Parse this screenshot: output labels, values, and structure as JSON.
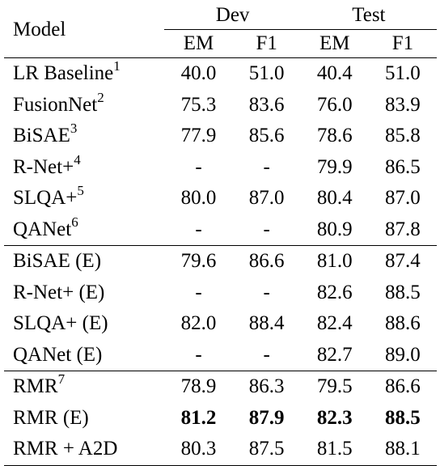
{
  "header": {
    "model_label": "Model",
    "dev_label": "Dev",
    "test_label": "Test",
    "em_label": "EM",
    "f1_label": "F1"
  },
  "rows": [
    {
      "name": "LR Baseline",
      "sup": "1",
      "dev_em": "40.0",
      "dev_f1": "51.0",
      "test_em": "40.4",
      "test_f1": "51.0"
    },
    {
      "name": "FusionNet",
      "sup": "2",
      "dev_em": "75.3",
      "dev_f1": "83.6",
      "test_em": "76.0",
      "test_f1": "83.9"
    },
    {
      "name": "BiSAE",
      "sup": "3",
      "dev_em": "77.9",
      "dev_f1": "85.6",
      "test_em": "78.6",
      "test_f1": "85.8"
    },
    {
      "name": "R-Net+",
      "sup": "4",
      "dev_em": "-",
      "dev_f1": "-",
      "test_em": "79.9",
      "test_f1": "86.5"
    },
    {
      "name": "SLQA+",
      "sup": "5",
      "dev_em": "80.0",
      "dev_f1": "87.0",
      "test_em": "80.4",
      "test_f1": "87.0"
    },
    {
      "name": "QANet",
      "sup": "6",
      "dev_em": "-",
      "dev_f1": "-",
      "test_em": "80.9",
      "test_f1": "87.8"
    },
    {
      "name": "BiSAE (E)",
      "sup": "",
      "dev_em": "79.6",
      "dev_f1": "86.6",
      "test_em": "81.0",
      "test_f1": "87.4"
    },
    {
      "name": "R-Net+ (E)",
      "sup": "",
      "dev_em": "-",
      "dev_f1": "-",
      "test_em": "82.6",
      "test_f1": "88.5"
    },
    {
      "name": "SLQA+ (E)",
      "sup": "",
      "dev_em": "82.0",
      "dev_f1": "88.4",
      "test_em": "82.4",
      "test_f1": "88.6"
    },
    {
      "name": "QANet (E)",
      "sup": "",
      "dev_em": "-",
      "dev_f1": "-",
      "test_em": "82.7",
      "test_f1": "89.0"
    },
    {
      "name": "RMR",
      "sup": "7",
      "dev_em": "78.9",
      "dev_f1": "86.3",
      "test_em": "79.5",
      "test_f1": "86.6"
    },
    {
      "name": "RMR (E)",
      "sup": "",
      "dev_em": "81.2",
      "dev_f1": "87.9",
      "test_em": "82.3",
      "test_f1": "88.5",
      "bold": true
    },
    {
      "name": "RMR + A2D",
      "sup": "",
      "dev_em": "80.3",
      "dev_f1": "87.5",
      "test_em": "81.5",
      "test_f1": "88.1"
    }
  ]
}
